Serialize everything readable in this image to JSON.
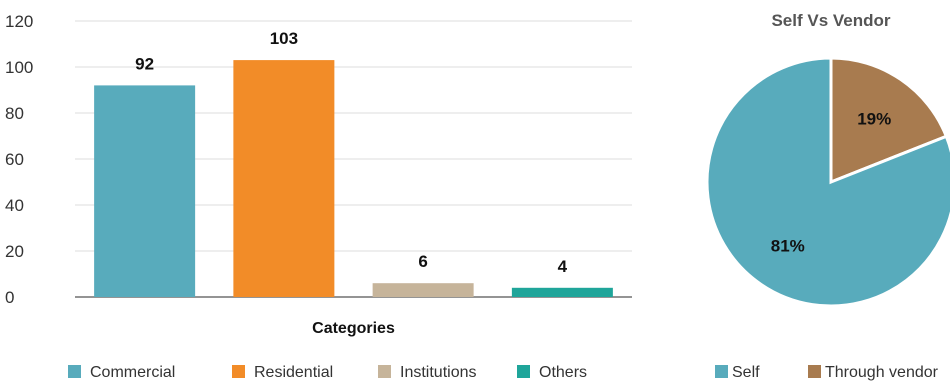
{
  "chart_data": [
    {
      "type": "bar",
      "categories": [
        "Commercial",
        "Residential",
        "Institutions",
        "Others"
      ],
      "values": [
        92,
        103,
        6,
        4
      ],
      "colors": [
        "#58abbc",
        "#f28c28",
        "#c6b49a",
        "#1fa59a"
      ],
      "xlabel": "Categories",
      "ylabel": "",
      "ylim": [
        0,
        120
      ],
      "yticks": [
        0,
        20,
        40,
        60,
        80,
        100,
        120
      ],
      "grid": true,
      "legend": "bottom",
      "data_labels": true
    },
    {
      "type": "pie",
      "title": "Self Vs Vendor",
      "labels": [
        "Self",
        "Through vendor"
      ],
      "values": [
        81,
        19
      ],
      "value_labels": [
        "81%",
        "19%"
      ],
      "colors": [
        "#58abbc",
        "#a87b4f"
      ],
      "legend": "bottom"
    }
  ]
}
